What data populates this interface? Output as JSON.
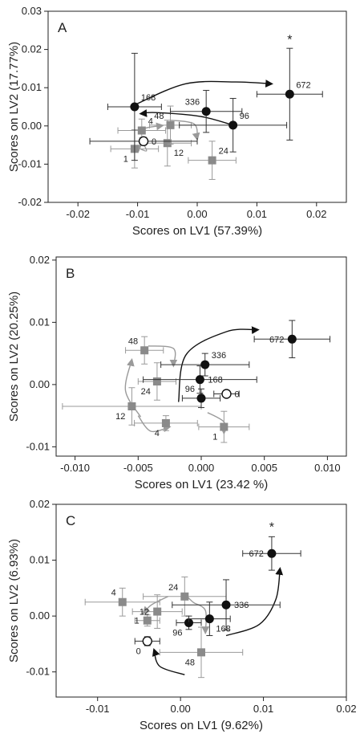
{
  "chart_data": [
    {
      "type": "scatter",
      "panel": "A",
      "xlabel": "Scores on LV1 (57.39%)",
      "ylabel": "Scores on LV2 (17.77%)",
      "xlim": [
        -0.025,
        0.025
      ],
      "ylim": [
        -0.02,
        0.03
      ],
      "xticks": [
        -0.02,
        -0.01,
        0.0,
        0.01,
        0.02
      ],
      "yticks": [
        -0.02,
        -0.01,
        0.0,
        0.01,
        0.02,
        0.03
      ],
      "xtick_labels": [
        "-0.02",
        "-0.01",
        "0.00",
        "0.01",
        "0.02"
      ],
      "ytick_labels": [
        "-0.02",
        "-0.01",
        "0.00",
        "0.01",
        "0.02",
        "0.03"
      ],
      "grid": false,
      "points": [
        {
          "label": "0",
          "x": -0.009,
          "y": -0.004,
          "xerr": 0.009,
          "yerr": 0.001,
          "marker": "open",
          "label_pos": "right"
        },
        {
          "label": "1",
          "x": -0.0105,
          "y": -0.006,
          "xerr": 0.004,
          "yerr": 0.005,
          "marker": "gray",
          "label_pos": "below-left"
        },
        {
          "label": "4",
          "x": -0.0093,
          "y": -0.0012,
          "xerr": 0.004,
          "yerr": 0.003,
          "marker": "gray",
          "label_pos": "above-right"
        },
        {
          "label": "12",
          "x": -0.005,
          "y": -0.0045,
          "xerr": 0.004,
          "yerr": 0.006,
          "marker": "gray",
          "label_pos": "below-right"
        },
        {
          "label": "48",
          "x": -0.0045,
          "y": 0.0002,
          "xerr": 0.0035,
          "yerr": 0.005,
          "marker": "gray",
          "label_pos": "above-left"
        },
        {
          "label": "24",
          "x": 0.0025,
          "y": -0.009,
          "xerr": 0.004,
          "yerr": 0.005,
          "marker": "gray",
          "label_pos": "above-right"
        },
        {
          "label": "168",
          "x": -0.0105,
          "y": 0.005,
          "xerr": 0.0045,
          "yerr": 0.014,
          "marker": "filled",
          "label_pos": "above-right"
        },
        {
          "label": "336",
          "x": 0.0015,
          "y": 0.0038,
          "xerr": 0.006,
          "yerr": 0.0055,
          "marker": "filled",
          "label_pos": "above-left"
        },
        {
          "label": "96",
          "x": 0.006,
          "y": 0.0002,
          "xerr": 0.009,
          "yerr": 0.007,
          "marker": "filled",
          "label_pos": "above-right"
        },
        {
          "label": "672",
          "x": 0.0155,
          "y": 0.0083,
          "xerr": 0.0055,
          "yerr": 0.012,
          "marker": "filled",
          "label_pos": "above-right"
        }
      ],
      "annotations": [
        {
          "text": "A",
          "pos": "top-left"
        },
        {
          "text": "*",
          "x": 0.0155,
          "y": 0.0215
        }
      ]
    },
    {
      "type": "scatter",
      "panel": "B",
      "xlabel": "Scores on LV1 (23.42 %)",
      "ylabel": "Scores on LV2 (20.25%)",
      "xlim": [
        -0.0115,
        0.0115
      ],
      "ylim": [
        -0.0115,
        0.0205
      ],
      "xticks": [
        -0.01,
        -0.005,
        0.0,
        0.005,
        0.01
      ],
      "yticks": [
        -0.01,
        0.0,
        0.01,
        0.02
      ],
      "xtick_labels": [
        "-0.010",
        "-0.005",
        "0.000",
        "0.005",
        "0.010"
      ],
      "ytick_labels": [
        "-0.01",
        "0.00",
        "0.01",
        "0.02"
      ],
      "grid": false,
      "points": [
        {
          "label": "0",
          "x": 0.002,
          "y": -0.0015,
          "xerr": 0.001,
          "yerr": 0.0005,
          "marker": "open",
          "label_pos": "right"
        },
        {
          "label": "1",
          "x": 0.0018,
          "y": -0.0068,
          "xerr": 0.002,
          "yerr": 0.0025,
          "marker": "gray",
          "label_pos": "below-left"
        },
        {
          "label": "4",
          "x": -0.0028,
          "y": -0.0062,
          "xerr": 0.0025,
          "yerr": 0.0012,
          "marker": "gray",
          "label_pos": "below-left"
        },
        {
          "label": "12",
          "x": -0.0055,
          "y": -0.0035,
          "xerr": 0.0055,
          "yerr": 0.003,
          "marker": "gray",
          "label_pos": "below-left"
        },
        {
          "label": "24",
          "x": -0.0035,
          "y": 0.0005,
          "xerr": 0.0015,
          "yerr": 0.003,
          "marker": "gray",
          "label_pos": "below-left"
        },
        {
          "label": "48",
          "x": -0.0045,
          "y": 0.0055,
          "xerr": 0.0015,
          "yerr": 0.0022,
          "marker": "gray",
          "label_pos": "above-left"
        },
        {
          "label": "96",
          "x": 0.0,
          "y": -0.0022,
          "xerr": 0.0015,
          "yerr": 0.0015,
          "marker": "filled",
          "label_pos": "above-left"
        },
        {
          "label": "168",
          "x": -0.0001,
          "y": 0.0008,
          "xerr": 0.0045,
          "yerr": 0.0022,
          "marker": "filled",
          "label_pos": "right"
        },
        {
          "label": "336",
          "x": 0.0003,
          "y": 0.0032,
          "xerr": 0.0035,
          "yerr": 0.0018,
          "marker": "filled",
          "label_pos": "above-right"
        },
        {
          "label": "672",
          "x": 0.0072,
          "y": 0.0073,
          "xerr": 0.003,
          "yerr": 0.003,
          "marker": "filled",
          "label_pos": "left"
        }
      ],
      "annotations": [
        {
          "text": "B",
          "pos": "top-left"
        }
      ]
    },
    {
      "type": "scatter",
      "panel": "C",
      "xlabel": "Scores on LV1 (9.62%)",
      "ylabel": "Scores on LV2 (6.93%)",
      "xlim": [
        -0.015,
        0.02
      ],
      "ylim": [
        -0.0145,
        0.02
      ],
      "xticks": [
        -0.01,
        0.0,
        0.01,
        0.02
      ],
      "yticks": [
        -0.01,
        0.0,
        0.01,
        0.02
      ],
      "xtick_labels": [
        "-0.01",
        "0.00",
        "0.01",
        "0.02"
      ],
      "ytick_labels": [
        "-0.01",
        "0.00",
        "0.01",
        "0.02"
      ],
      "grid": false,
      "points": [
        {
          "label": "0",
          "x": -0.004,
          "y": -0.0045,
          "xerr": 0.0015,
          "yerr": 0.0008,
          "marker": "open",
          "label_pos": "below-left"
        },
        {
          "label": "1",
          "x": -0.004,
          "y": -0.0008,
          "xerr": 0.0015,
          "yerr": 0.001,
          "marker": "gray",
          "label_pos": "left"
        },
        {
          "label": "4",
          "x": -0.007,
          "y": 0.0025,
          "xerr": 0.0045,
          "yerr": 0.0025,
          "marker": "gray",
          "label_pos": "above-left"
        },
        {
          "label": "12",
          "x": -0.0028,
          "y": 0.0008,
          "xerr": 0.003,
          "yerr": 0.003,
          "marker": "gray",
          "label_pos": "left"
        },
        {
          "label": "24",
          "x": 0.0005,
          "y": 0.0035,
          "xerr": 0.005,
          "yerr": 0.0035,
          "marker": "gray",
          "label_pos": "above-left"
        },
        {
          "label": "48",
          "x": 0.0025,
          "y": -0.0065,
          "xerr": 0.005,
          "yerr": 0.0045,
          "marker": "gray",
          "label_pos": "below-left"
        },
        {
          "label": "96",
          "x": 0.001,
          "y": -0.0012,
          "xerr": 0.0015,
          "yerr": 0.0012,
          "marker": "filled",
          "label_pos": "below-left"
        },
        {
          "label": "168",
          "x": 0.0035,
          "y": -0.0005,
          "xerr": 0.0025,
          "yerr": 0.003,
          "marker": "filled",
          "label_pos": "below-right"
        },
        {
          "label": "336",
          "x": 0.0055,
          "y": 0.002,
          "xerr": 0.0065,
          "yerr": 0.0045,
          "marker": "filled",
          "label_pos": "right"
        },
        {
          "label": "672",
          "x": 0.011,
          "y": 0.0112,
          "xerr": 0.0035,
          "yerr": 0.003,
          "marker": "filled",
          "label_pos": "left"
        }
      ],
      "annotations": [
        {
          "text": "C",
          "pos": "top-left"
        },
        {
          "text": "*",
          "x": 0.011,
          "y": 0.0152
        }
      ]
    }
  ],
  "colors": {
    "filled": "#111111",
    "gray": "#8a8a8a",
    "open_fill": "#ffffff",
    "black_arrow": "#111111",
    "gray_arrow": "#9a9a9a",
    "error_bar": "#333333",
    "gray_error_bar": "#9a9a9a"
  }
}
